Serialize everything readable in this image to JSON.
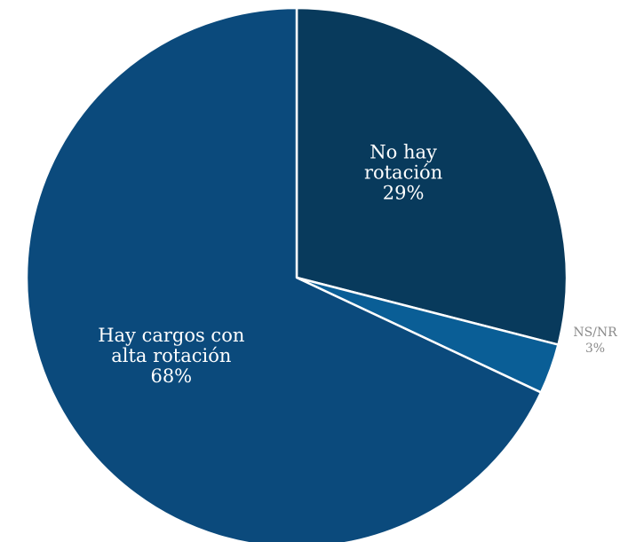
{
  "chart_data": {
    "type": "pie",
    "slices": [
      {
        "label": [
          "No hay",
          "rotación"
        ],
        "pct": "29%",
        "value": 29,
        "color": "#083a5c"
      },
      {
        "label": [
          "NS/NR"
        ],
        "pct": "3%",
        "value": 3,
        "color": "#0a5e96"
      },
      {
        "label": [
          "Hay cargos con",
          "alta rotación"
        ],
        "pct": "68%",
        "value": 68,
        "color": "#0b4a7c"
      }
    ],
    "colors": {
      "inside_label": "#ffffff",
      "outside_label": "#8a8a8a",
      "separator": "#ffffff"
    }
  }
}
